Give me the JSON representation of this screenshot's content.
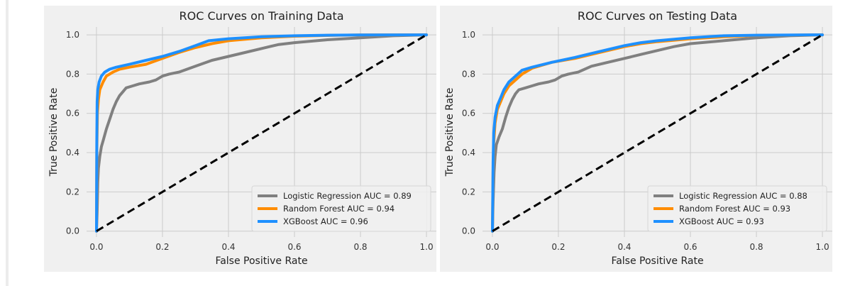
{
  "chart_data": [
    {
      "type": "line",
      "title": "ROC Curves on Training Data",
      "xlabel": "False Positive Rate",
      "ylabel": "True Positive Rate",
      "xlim": [
        -0.03,
        1.03
      ],
      "ylim": [
        -0.03,
        1.04
      ],
      "xticks": [
        0.0,
        0.2,
        0.4,
        0.6,
        0.8,
        1.0
      ],
      "yticks": [
        0.0,
        0.2,
        0.4,
        0.6,
        0.8,
        1.0
      ],
      "grid": true,
      "legend_position": "lower-right",
      "series": [
        {
          "name": "Logistic Regression AUC = 0.89",
          "color": "#808080",
          "points": [
            [
              0,
              0
            ],
            [
              0.002,
              0.1
            ],
            [
              0.004,
              0.25
            ],
            [
              0.006,
              0.32
            ],
            [
              0.01,
              0.38
            ],
            [
              0.015,
              0.43
            ],
            [
              0.02,
              0.46
            ],
            [
              0.03,
              0.52
            ],
            [
              0.04,
              0.57
            ],
            [
              0.05,
              0.62
            ],
            [
              0.06,
              0.66
            ],
            [
              0.07,
              0.69
            ],
            [
              0.08,
              0.71
            ],
            [
              0.09,
              0.73
            ],
            [
              0.11,
              0.74
            ],
            [
              0.13,
              0.75
            ],
            [
              0.16,
              0.76
            ],
            [
              0.18,
              0.77
            ],
            [
              0.2,
              0.79
            ],
            [
              0.22,
              0.8
            ],
            [
              0.25,
              0.81
            ],
            [
              0.3,
              0.84
            ],
            [
              0.35,
              0.87
            ],
            [
              0.4,
              0.89
            ],
            [
              0.45,
              0.91
            ],
            [
              0.5,
              0.93
            ],
            [
              0.55,
              0.95
            ],
            [
              0.6,
              0.96
            ],
            [
              0.7,
              0.975
            ],
            [
              0.8,
              0.985
            ],
            [
              0.9,
              0.995
            ],
            [
              1.0,
              1.0
            ]
          ]
        },
        {
          "name": "Random Forest AUC = 0.94",
          "color": "#ff8c00",
          "points": [
            [
              0,
              0
            ],
            [
              0.001,
              0.4
            ],
            [
              0.003,
              0.6
            ],
            [
              0.006,
              0.67
            ],
            [
              0.01,
              0.72
            ],
            [
              0.02,
              0.76
            ],
            [
              0.03,
              0.79
            ],
            [
              0.05,
              0.81
            ],
            [
              0.07,
              0.825
            ],
            [
              0.1,
              0.835
            ],
            [
              0.15,
              0.85
            ],
            [
              0.2,
              0.88
            ],
            [
              0.25,
              0.91
            ],
            [
              0.3,
              0.935
            ],
            [
              0.35,
              0.955
            ],
            [
              0.4,
              0.97
            ],
            [
              0.5,
              0.985
            ],
            [
              0.6,
              0.993
            ],
            [
              0.7,
              0.997
            ],
            [
              0.8,
              0.999
            ],
            [
              1.0,
              1.0
            ]
          ]
        },
        {
          "name": "XGBoost AUC = 0.96",
          "color": "#1e90ff",
          "points": [
            [
              0,
              0
            ],
            [
              0.001,
              0.45
            ],
            [
              0.002,
              0.66
            ],
            [
              0.004,
              0.72
            ],
            [
              0.008,
              0.76
            ],
            [
              0.015,
              0.79
            ],
            [
              0.025,
              0.81
            ],
            [
              0.04,
              0.825
            ],
            [
              0.06,
              0.835
            ],
            [
              0.1,
              0.85
            ],
            [
              0.15,
              0.87
            ],
            [
              0.2,
              0.89
            ],
            [
              0.25,
              0.915
            ],
            [
              0.3,
              0.945
            ],
            [
              0.34,
              0.97
            ],
            [
              0.4,
              0.98
            ],
            [
              0.5,
              0.99
            ],
            [
              0.6,
              0.995
            ],
            [
              0.7,
              0.998
            ],
            [
              0.8,
              0.999
            ],
            [
              1.0,
              1.0
            ]
          ]
        },
        {
          "name": "",
          "color": "#000000",
          "dashed": true,
          "points": [
            [
              0,
              0
            ],
            [
              1,
              1
            ]
          ]
        }
      ]
    },
    {
      "type": "line",
      "title": "ROC Curves on Testing Data",
      "xlabel": "False Positive Rate",
      "ylabel": "True Positive Rate",
      "xlim": [
        -0.03,
        1.03
      ],
      "ylim": [
        -0.03,
        1.04
      ],
      "xticks": [
        0.0,
        0.2,
        0.4,
        0.6,
        0.8,
        1.0
      ],
      "yticks": [
        0.0,
        0.2,
        0.4,
        0.6,
        0.8,
        1.0
      ],
      "grid": true,
      "legend_position": "lower-right",
      "series": [
        {
          "name": "Logistic Regression AUC = 0.88",
          "color": "#808080",
          "points": [
            [
              0,
              0
            ],
            [
              0.002,
              0.15
            ],
            [
              0.005,
              0.3
            ],
            [
              0.008,
              0.38
            ],
            [
              0.012,
              0.44
            ],
            [
              0.02,
              0.48
            ],
            [
              0.03,
              0.52
            ],
            [
              0.04,
              0.58
            ],
            [
              0.05,
              0.63
            ],
            [
              0.06,
              0.67
            ],
            [
              0.07,
              0.7
            ],
            [
              0.08,
              0.72
            ],
            [
              0.1,
              0.73
            ],
            [
              0.12,
              0.74
            ],
            [
              0.14,
              0.75
            ],
            [
              0.17,
              0.76
            ],
            [
              0.19,
              0.77
            ],
            [
              0.21,
              0.79
            ],
            [
              0.23,
              0.8
            ],
            [
              0.26,
              0.81
            ],
            [
              0.3,
              0.84
            ],
            [
              0.35,
              0.86
            ],
            [
              0.4,
              0.88
            ],
            [
              0.45,
              0.9
            ],
            [
              0.5,
              0.92
            ],
            [
              0.55,
              0.94
            ],
            [
              0.6,
              0.955
            ],
            [
              0.7,
              0.97
            ],
            [
              0.8,
              0.985
            ],
            [
              0.9,
              0.995
            ],
            [
              1.0,
              1.0
            ]
          ]
        },
        {
          "name": "Random Forest AUC = 0.93",
          "color": "#ff8c00",
          "points": [
            [
              0,
              0
            ],
            [
              0.002,
              0.3
            ],
            [
              0.004,
              0.45
            ],
            [
              0.008,
              0.55
            ],
            [
              0.015,
              0.62
            ],
            [
              0.025,
              0.66
            ],
            [
              0.035,
              0.7
            ],
            [
              0.05,
              0.74
            ],
            [
              0.07,
              0.77
            ],
            [
              0.09,
              0.8
            ],
            [
              0.12,
              0.83
            ],
            [
              0.18,
              0.86
            ],
            [
              0.25,
              0.88
            ],
            [
              0.3,
              0.9
            ],
            [
              0.35,
              0.92
            ],
            [
              0.4,
              0.94
            ],
            [
              0.45,
              0.955
            ],
            [
              0.5,
              0.965
            ],
            [
              0.6,
              0.98
            ],
            [
              0.7,
              0.99
            ],
            [
              0.8,
              0.997
            ],
            [
              1.0,
              1.0
            ]
          ]
        },
        {
          "name": "XGBoost AUC = 0.93",
          "color": "#1e90ff",
          "points": [
            [
              0,
              0
            ],
            [
              0.002,
              0.35
            ],
            [
              0.004,
              0.5
            ],
            [
              0.008,
              0.58
            ],
            [
              0.015,
              0.64
            ],
            [
              0.025,
              0.68
            ],
            [
              0.035,
              0.72
            ],
            [
              0.05,
              0.76
            ],
            [
              0.07,
              0.79
            ],
            [
              0.09,
              0.82
            ],
            [
              0.12,
              0.835
            ],
            [
              0.18,
              0.86
            ],
            [
              0.25,
              0.885
            ],
            [
              0.3,
              0.905
            ],
            [
              0.35,
              0.925
            ],
            [
              0.4,
              0.945
            ],
            [
              0.45,
              0.96
            ],
            [
              0.5,
              0.97
            ],
            [
              0.6,
              0.985
            ],
            [
              0.7,
              0.995
            ],
            [
              0.8,
              0.998
            ],
            [
              1.0,
              1.0
            ]
          ]
        },
        {
          "name": "",
          "color": "#000000",
          "dashed": true,
          "points": [
            [
              0,
              0
            ],
            [
              1,
              1
            ]
          ]
        }
      ]
    }
  ]
}
